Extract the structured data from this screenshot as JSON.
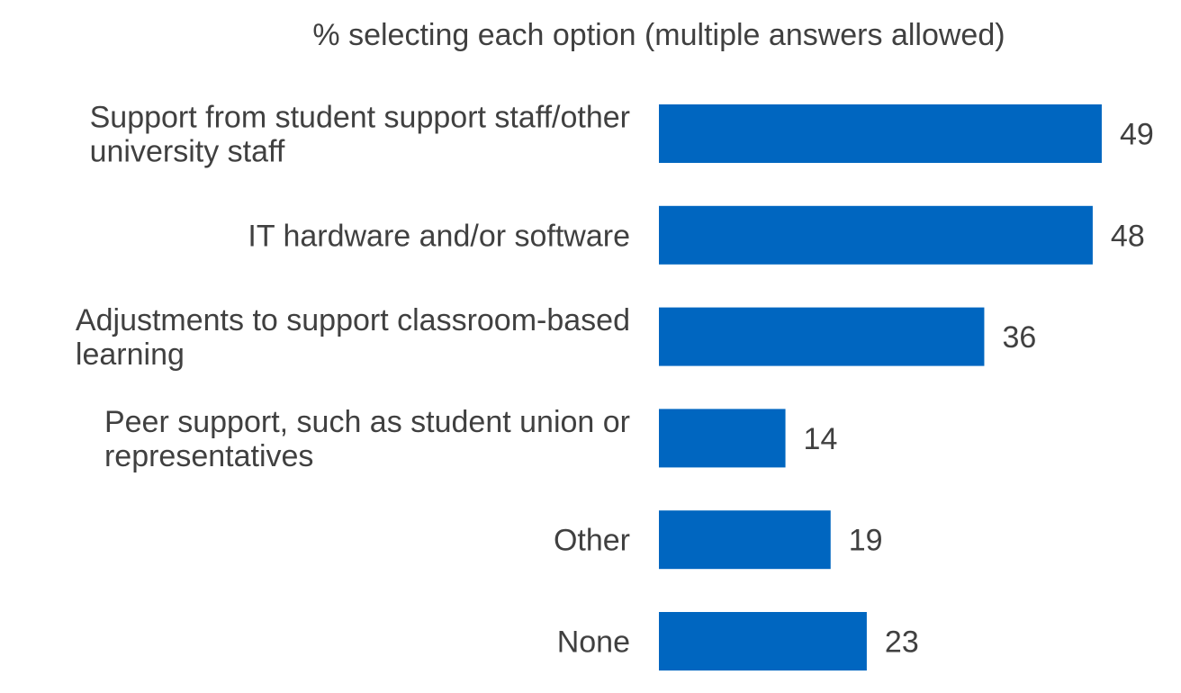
{
  "chart_data": {
    "type": "bar",
    "orientation": "horizontal",
    "title": "% selecting each option (multiple answers allowed)",
    "xlabel": "",
    "ylabel": "",
    "categories": [
      "Support from student support staff/other university staff",
      "IT hardware and/or software",
      "Adjustments to support classroom-based learning",
      "Peer support, such as student union or representatives",
      "Other",
      "None"
    ],
    "values": [
      49,
      48,
      36,
      14,
      19,
      23
    ],
    "grid": false,
    "legend": "none",
    "bar_color": "#0066C0",
    "text_color": "#404040"
  }
}
